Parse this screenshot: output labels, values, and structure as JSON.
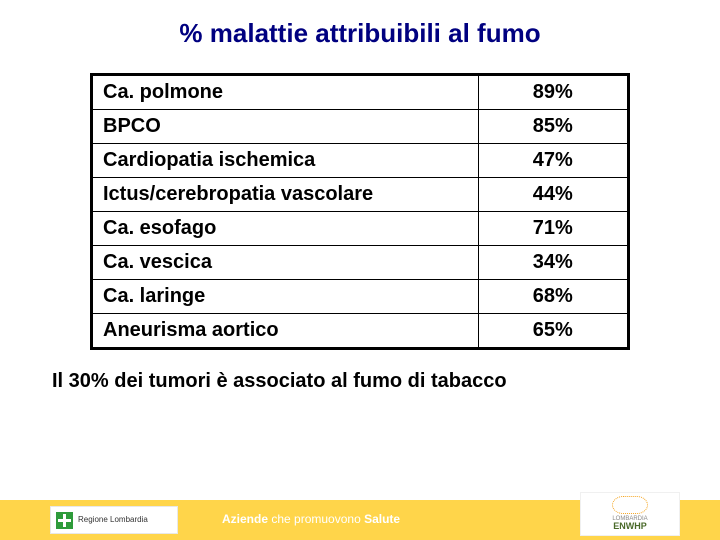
{
  "title": "% malattie attribuibili al fumo",
  "table": {
    "rows": [
      {
        "disease": "Ca. polmone",
        "pct": "89%"
      },
      {
        "disease": "BPCO",
        "pct": "85%"
      },
      {
        "disease": "Cardiopatia ischemica",
        "pct": "47%"
      },
      {
        "disease": "Ictus/cerebropatia vascolare",
        "pct": "44%"
      },
      {
        "disease": "Ca. esofago",
        "pct": "71%"
      },
      {
        "disease": "Ca. vescica",
        "pct": "34%"
      },
      {
        "disease": "Ca. laringe",
        "pct": "68%"
      },
      {
        "disease": "Aneurisma aortico",
        "pct": "65%"
      }
    ],
    "column_widths": [
      "72%",
      "28%"
    ],
    "border_color": "#000000",
    "outer_border_width": 3,
    "font_size": 20
  },
  "note": "Il 30% dei tumori è associato al fumo di tabacco",
  "footer": {
    "bar_color": "#ffd54a",
    "text_bold": "Aziende",
    "text_rest": " che promuovono ",
    "text_bold2": "Salute",
    "logo_left": "Regione Lombardia",
    "logo_right_small": "LOMBARDIA",
    "logo_right_main": "ENWHP"
  },
  "colors": {
    "title": "#000080",
    "text": "#000000",
    "background": "#ffffff"
  }
}
